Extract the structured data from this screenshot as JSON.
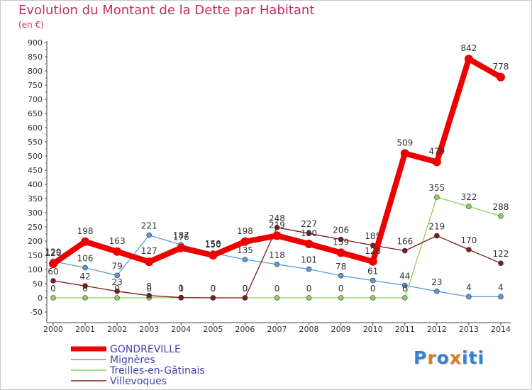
{
  "title": "Evolution du Montant de la Dette par Habitant",
  "unit": "(en €)",
  "logo": {
    "text": "Proxiti",
    "letters": [
      "P",
      "r",
      "o",
      "x",
      "i",
      "t",
      "i"
    ],
    "colors": [
      "#3b7fd0",
      "#e07a20",
      "#3b7fd0",
      "#e07a20",
      "#3b7fd0",
      "#3b7fd0",
      "#3b7fd0"
    ]
  },
  "chart_data": {
    "type": "line",
    "x": [
      "2000",
      "2001",
      "2002",
      "2003",
      "2004",
      "2005",
      "2006",
      "2007",
      "2008",
      "2009",
      "2010",
      "2011",
      "2012",
      "2013",
      "2014"
    ],
    "ylim": [
      -50,
      900
    ],
    "yticks": [
      -50,
      0,
      50,
      100,
      150,
      200,
      250,
      300,
      350,
      400,
      450,
      500,
      550,
      600,
      650,
      700,
      750,
      800,
      850,
      900
    ],
    "grid": false,
    "legend_position": "bottom-left",
    "series": [
      {
        "name": "Mignères",
        "color": "#5b9bd5",
        "values": [
          129,
          106,
          79,
          221,
          187,
          158,
          135,
          118,
          101,
          78,
          61,
          44,
          23,
          4,
          4
        ],
        "labels": [
          "129",
          "106",
          "79",
          "221",
          "187",
          "158",
          "135",
          "118",
          "101",
          "78",
          "61",
          "44",
          "23",
          "4",
          "4"
        ]
      },
      {
        "name": "Treilles-en-Gâtinais",
        "color": "#8fcf5a",
        "values": [
          0,
          0,
          0,
          0,
          0,
          0,
          0,
          0,
          0,
          0,
          0,
          0,
          355,
          322,
          288
        ],
        "labels": [
          "0",
          "0",
          "0",
          "0",
          "0",
          "0",
          "0",
          "0",
          "0",
          "0",
          "0",
          "0",
          "355",
          "322",
          "288"
        ]
      },
      {
        "name": "Villevoques",
        "color": "#7a1e1e",
        "values": [
          60,
          42,
          23,
          8,
          1,
          0,
          0,
          248,
          227,
          206,
          185,
          166,
          219,
          170,
          122
        ],
        "labels": [
          "60",
          "42",
          "23",
          "8",
          "1",
          "0",
          "0",
          "248",
          "227",
          "206",
          "185",
          "166",
          "219",
          "170",
          "122"
        ]
      },
      {
        "name": "GONDREVILLE",
        "color": "#ee0000",
        "values": [
          120,
          198,
          163,
          127,
          176,
          150,
          198,
          219,
          190,
          159,
          128,
          509,
          479,
          842,
          778
        ],
        "labels": [
          "120",
          "198",
          "163",
          "127",
          "176",
          "150",
          "198",
          "219",
          "190",
          "159",
          "128",
          "509",
          "479",
          "842",
          "778"
        ]
      }
    ],
    "legend_order": [
      "GONDREVILLE",
      "Mignères",
      "Treilles-en-Gâtinais",
      "Villevoques"
    ]
  }
}
